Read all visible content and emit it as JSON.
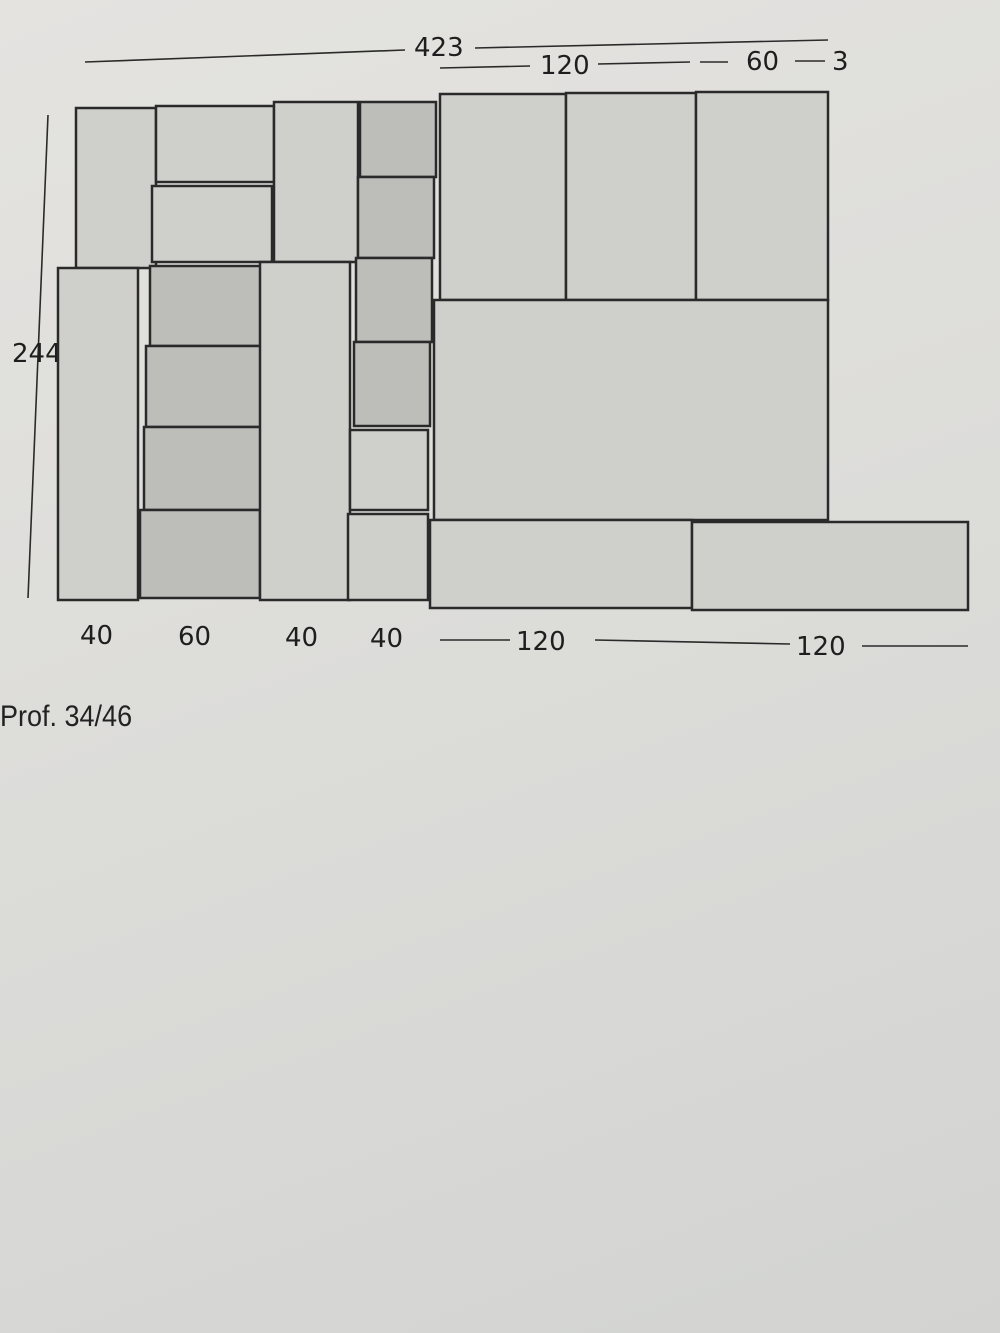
{
  "dimensions": {
    "total_width": "423",
    "top_right": [
      "120",
      "60",
      "3"
    ],
    "height": "244",
    "bottom": [
      "40",
      "60",
      "40",
      "40",
      "120",
      "120"
    ]
  },
  "depth_note": "Prof. 34/46"
}
